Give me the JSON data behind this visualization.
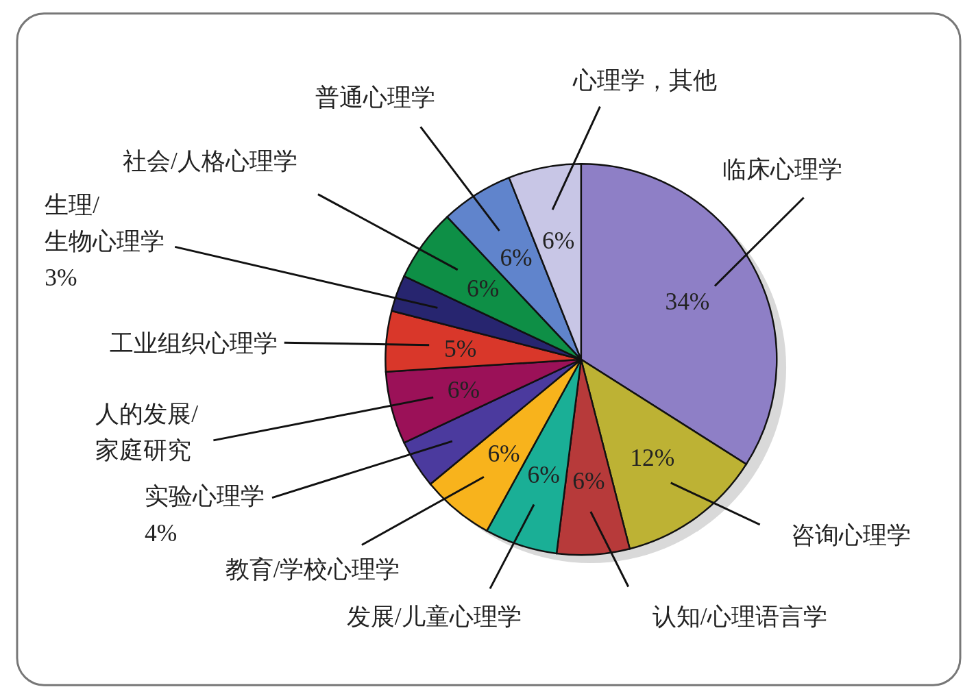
{
  "chart_data": {
    "type": "pie",
    "categories": [
      "临床心理学",
      "咨询心理学",
      "认知/心理语言学",
      "发展/儿童心理学",
      "教育/学校心理学",
      "实验心理学",
      "人的发展/\n家庭研究",
      "工业组织心理学",
      "生理/\n生物心理学",
      "社会/人格心理学",
      "普通心理学",
      "心理学，其他"
    ],
    "values": [
      34,
      12,
      6,
      6,
      6,
      4,
      6,
      5,
      3,
      6,
      6,
      6
    ],
    "value_labels": [
      "34%",
      "12%",
      "6%",
      "6%",
      "6%",
      "4%",
      "6%",
      "5%",
      "3%",
      "6%",
      "6%",
      "6%"
    ],
    "colors": [
      "#8e7fc6",
      "#bdb234",
      "#b73a3a",
      "#1aaf96",
      "#f8b31c",
      "#4b3a9e",
      "#9b1158",
      "#d9372a",
      "#27256f",
      "#0e8f46",
      "#6084cc",
      "#c8c6e6"
    ]
  }
}
